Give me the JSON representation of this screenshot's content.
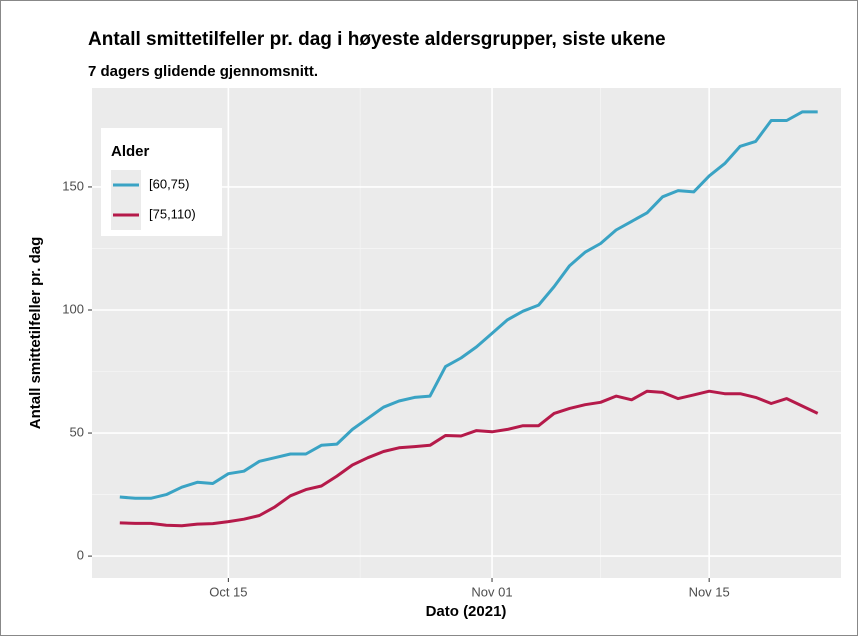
{
  "chart_data": {
    "type": "line",
    "title": "Antall smittetilfeller pr. dag i høyeste aldersgrupper, siste ukene",
    "subtitle": "7 dagers glidende gjennomsnitt.",
    "x_label": "Dato (2021)",
    "y_label": "Antall smittetilfeller pr. dag",
    "legend_title": "Alder",
    "legend_position": "top-left",
    "grid": true,
    "x": [
      "2021-10-08",
      "2021-10-09",
      "2021-10-10",
      "2021-10-11",
      "2021-10-12",
      "2021-10-13",
      "2021-10-14",
      "2021-10-15",
      "2021-10-16",
      "2021-10-17",
      "2021-10-18",
      "2021-10-19",
      "2021-10-20",
      "2021-10-21",
      "2021-10-22",
      "2021-10-23",
      "2021-10-24",
      "2021-10-25",
      "2021-10-26",
      "2021-10-27",
      "2021-10-28",
      "2021-10-29",
      "2021-10-30",
      "2021-10-31",
      "2021-11-01",
      "2021-11-02",
      "2021-11-03",
      "2021-11-04",
      "2021-11-05",
      "2021-11-06",
      "2021-11-07",
      "2021-11-08",
      "2021-11-09",
      "2021-11-10",
      "2021-11-11",
      "2021-11-12",
      "2021-11-13",
      "2021-11-14",
      "2021-11-15",
      "2021-11-16",
      "2021-11-17",
      "2021-11-18",
      "2021-11-19",
      "2021-11-20",
      "2021-11-21",
      "2021-11-22"
    ],
    "series": [
      {
        "name": "[60,75)",
        "color": "#3aa3c4",
        "values": [
          24,
          23.5,
          23.5,
          25,
          28,
          30,
          29.5,
          33.5,
          34.5,
          38.5,
          40,
          41.5,
          41.5,
          45,
          45.5,
          51.5,
          56,
          60.5,
          63,
          64.5,
          65,
          77,
          80.5,
          85,
          90.5,
          96,
          99.5,
          102,
          109.5,
          118,
          123.5,
          127,
          132.5,
          136,
          139.5,
          146,
          148.5,
          148,
          154.5,
          159.5,
          166.5,
          168.5,
          177,
          177,
          180.5,
          180.5
        ]
      },
      {
        "name": "[75,110)",
        "color": "#b51a4a",
        "values": [
          13.5,
          13.3,
          13.3,
          12.5,
          12.3,
          13,
          13.2,
          14,
          15,
          16.5,
          20,
          24.5,
          27,
          28.5,
          32.5,
          37,
          40,
          42.5,
          44,
          44.5,
          45,
          49,
          48.8,
          51,
          50.5,
          51.5,
          53,
          53,
          58,
          60,
          61.5,
          62.5,
          65,
          63.5,
          67,
          66.5,
          64,
          65.5,
          67,
          66,
          66,
          64.5,
          62,
          64,
          61,
          58
        ]
      }
    ],
    "xlim": [
      "2021-10-06T05:00",
      "2021-11-23T12:00"
    ],
    "xticks": [
      {
        "value": "2021-10-15",
        "label": "Oct 15"
      },
      {
        "value": "2021-11-01",
        "label": "Nov 01"
      },
      {
        "value": "2021-11-15",
        "label": "Nov 15"
      }
    ],
    "ylim": [
      -8.9,
      190.2
    ],
    "yticks": [
      0,
      50,
      100,
      150
    ]
  }
}
